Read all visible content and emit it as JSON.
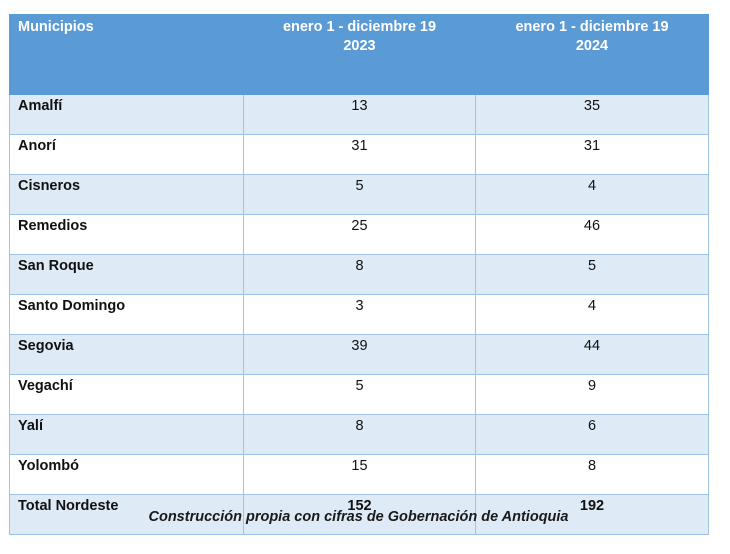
{
  "table": {
    "headers": {
      "municipios": "Municipios",
      "col_2023_line1": "enero 1 - diciembre 19",
      "col_2023_line2": "2023",
      "col_2024_line1": "enero 1 - diciembre 19",
      "col_2024_line2": "2024"
    },
    "rows": [
      {
        "name": "Amalfí",
        "v2023": "13",
        "v2024": "35"
      },
      {
        "name": "Anorí",
        "v2023": "31",
        "v2024": "31"
      },
      {
        "name": "Cisneros",
        "v2023": "5",
        "v2024": "4"
      },
      {
        "name": "Remedios",
        "v2023": "25",
        "v2024": "46"
      },
      {
        "name": "San Roque",
        "v2023": "8",
        "v2024": "5"
      },
      {
        "name": "Santo Domingo",
        "v2023": "3",
        "v2024": "4"
      },
      {
        "name": "Segovia",
        "v2023": "39",
        "v2024": "44"
      },
      {
        "name": "Vegachí",
        "v2023": "5",
        "v2024": "9"
      },
      {
        "name": "Yalí",
        "v2023": "8",
        "v2024": "6"
      },
      {
        "name": "Yolombó",
        "v2023": "15",
        "v2024": "8"
      }
    ],
    "total": {
      "name": "Total Nordeste",
      "v2023": "152",
      "v2024": "192"
    }
  },
  "caption": "Construcción propia con cifras de Gobernación de Antioquia",
  "colors": {
    "header_bg": "#5b9bd5",
    "band_bg": "#deeaf6",
    "border": "#9dc3e6"
  }
}
